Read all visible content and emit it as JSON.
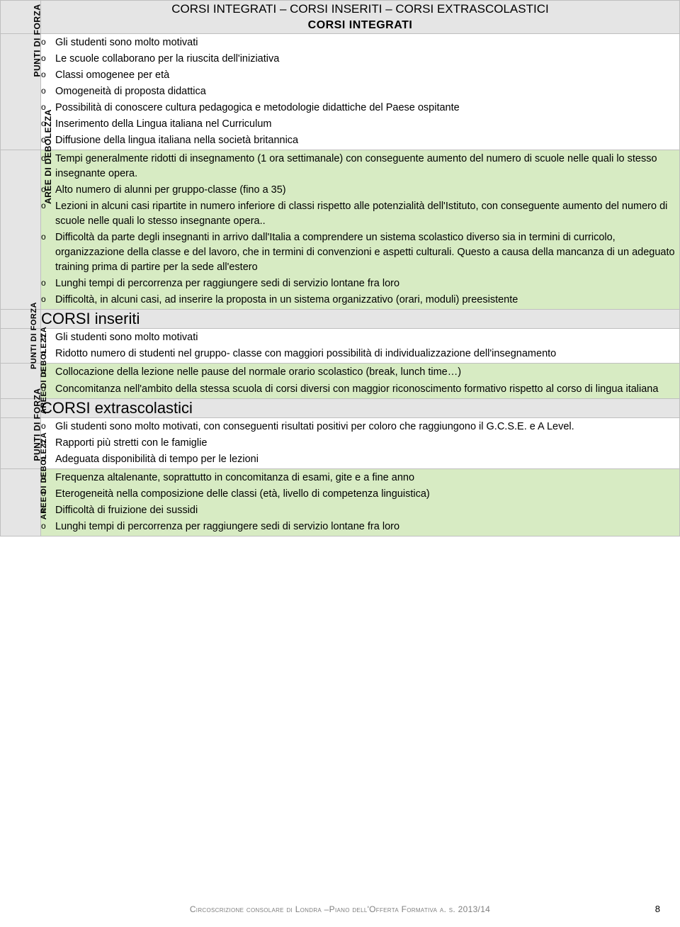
{
  "header": {
    "title_line": "CORSI INTEGRATI – CORSI INSERITI – CORSI EXTRASCOLASTICI",
    "subtitle": "CORSI INTEGRATI"
  },
  "labels": {
    "forza": "PUNTI DI FORZA",
    "debolezza": "AREE DI DEBOLEZZA",
    "forza_short": "PUNTI DI\nFORZA",
    "debolezza_short": "AREE DI\nDEBOLEZZA"
  },
  "section1": {
    "forza": [
      "Gli studenti sono molto motivati",
      "Le scuole collaborano per la riuscita dell'iniziativa",
      "Classi omogenee per età",
      "Omogeneità di proposta didattica",
      "Possibilità di conoscere cultura pedagogica e metodologie didattiche del Paese ospitante",
      "Inserimento della Lingua italiana nel Curriculum",
      "Diffusione della lingua italiana nella società britannica"
    ],
    "debolezza": [
      "Tempi generalmente ridotti di insegnamento (1 ora settimanale) con conseguente aumento del numero di scuole nelle quali lo stesso insegnante opera.",
      "Alto numero di alunni per gruppo-classe (fino a 35)",
      "Lezioni in alcuni casi ripartite in numero inferiore di classi rispetto alle potenzialità dell'Istituto, con conseguente aumento del numero di scuole nelle quali lo stesso insegnante opera..",
      "Difficoltà da parte degli insegnanti in arrivo dall'Italia a comprendere un sistema scolastico diverso sia in termini di curricolo, organizzazione della classe e del lavoro, che in termini di convenzioni e aspetti culturali. Questo a causa della mancanza di un adeguato training prima di partire per la sede all'estero",
      "Lunghi tempi di percorrenza per raggiungere sedi di servizio lontane fra loro",
      "Difficoltà, in alcuni casi, ad inserire la proposta in un sistema organizzativo (orari, moduli) preesistente"
    ]
  },
  "section2": {
    "title": "CORSI inseriti",
    "forza": [
      "Gli studenti sono molto motivati",
      "Ridotto numero di studenti nel gruppo- classe con maggiori possibilità di individualizzazione dell'insegnamento"
    ],
    "debolezza": [
      "Collocazione della lezione nelle pause del normale orario scolastico (break, lunch time…)",
      "Concomitanza nell'ambito della stessa scuola di corsi diversi con maggior riconoscimento formativo rispetto al corso di lingua italiana"
    ]
  },
  "section3": {
    "title": "CORSI extrascolastici",
    "forza": [
      "Gli studenti sono molto motivati, con conseguenti risultati positivi per coloro che raggiungono il G.C.S.E. e A Level.",
      "Rapporti più stretti con le famiglie",
      "Adeguata disponibilità di tempo per le lezioni"
    ],
    "debolezza": [
      "Frequenza altalenante, soprattutto in concomitanza di esami, gite e a fine anno",
      "Eterogeneità  nella composizione delle classi (età, livello di competenza linguistica)",
      "Difficoltà di fruizione dei sussidi",
      "Lunghi tempi di percorrenza per raggiungere sedi di servizio lontane fra loro"
    ]
  },
  "footer": {
    "text": "Circoscrizione consolare di Londra –Piano dell'Offerta Formativa a. s. 2013/14",
    "page": "8"
  }
}
